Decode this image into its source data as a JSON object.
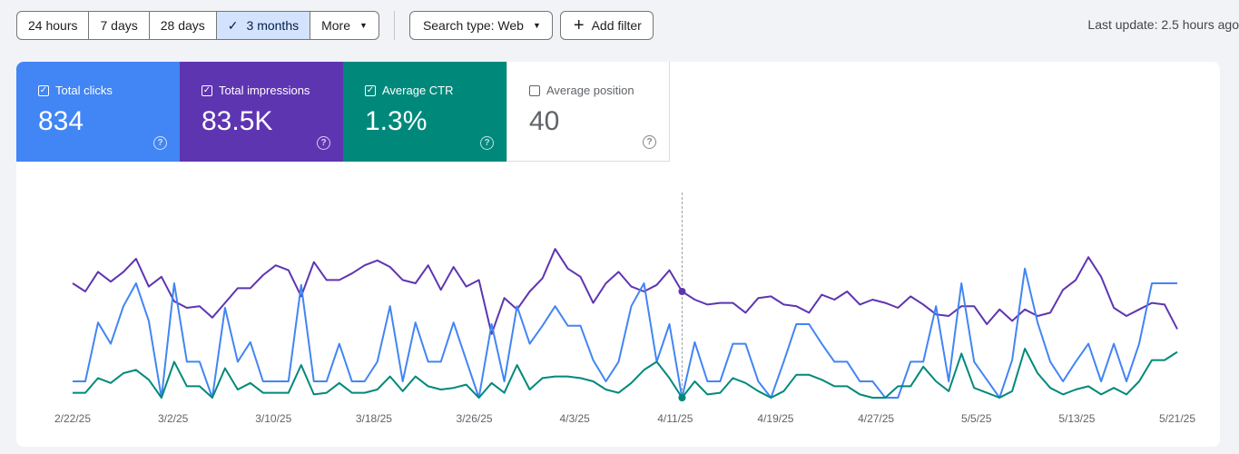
{
  "date_range": {
    "options": [
      {
        "label": "24 hours",
        "selected": false
      },
      {
        "label": "7 days",
        "selected": false
      },
      {
        "label": "28 days",
        "selected": false
      },
      {
        "label": "3 months",
        "selected": true
      },
      {
        "label": "More",
        "selected": false,
        "dropdown": true
      }
    ]
  },
  "filters": {
    "search_type": "Search type: Web",
    "add_filter": "Add filter"
  },
  "last_update": "Last update: 2.5 hours ago",
  "metrics": [
    {
      "label": "Total clicks",
      "value": "834",
      "checked": true,
      "color": "#4285f4"
    },
    {
      "label": "Total impressions",
      "value": "83.5K",
      "checked": true,
      "color": "#5e35b1"
    },
    {
      "label": "Average CTR",
      "value": "1.3%",
      "checked": true,
      "color": "#00897b"
    },
    {
      "label": "Average position",
      "value": "40",
      "checked": false,
      "color": "#ffffff"
    }
  ],
  "chart_data": {
    "type": "line",
    "x_tick_labels": [
      "2/22/25",
      "3/2/25",
      "3/10/25",
      "3/18/25",
      "3/26/25",
      "4/3/25",
      "4/11/25",
      "4/19/25",
      "4/27/25",
      "5/5/25",
      "5/13/25",
      "5/21/25"
    ],
    "hover_index": 48,
    "series": [
      {
        "color": "#5e35b1",
        "values": [
          0.7,
          0.65,
          0.77,
          0.71,
          0.77,
          0.85,
          0.68,
          0.74,
          0.59,
          0.55,
          0.56,
          0.49,
          0.58,
          0.67,
          0.67,
          0.75,
          0.81,
          0.78,
          0.62,
          0.83,
          0.72,
          0.72,
          0.76,
          0.81,
          0.84,
          0.8,
          0.72,
          0.7,
          0.81,
          0.66,
          0.8,
          0.68,
          0.72,
          0.39,
          0.61,
          0.54,
          0.65,
          0.73,
          0.91,
          0.79,
          0.74,
          0.58,
          0.7,
          0.77,
          0.68,
          0.65,
          0.69,
          0.78,
          0.65,
          0.6,
          0.57,
          0.58,
          0.58,
          0.52,
          0.61,
          0.62,
          0.57,
          0.56,
          0.52,
          0.63,
          0.6,
          0.65,
          0.57,
          0.6,
          0.58,
          0.55,
          0.62,
          0.57,
          0.51,
          0.5,
          0.56,
          0.56,
          0.45,
          0.54,
          0.47,
          0.54,
          0.5,
          0.52,
          0.66,
          0.72,
          0.86,
          0.74,
          0.55,
          0.5,
          0.54,
          0.58,
          0.57,
          0.42
        ]
      },
      {
        "color": "#4285f4",
        "values": [
          0.1,
          0.1,
          0.46,
          0.33,
          0.56,
          0.7,
          0.47,
          0.0,
          0.7,
          0.22,
          0.22,
          0.0,
          0.55,
          0.22,
          0.34,
          0.1,
          0.1,
          0.1,
          0.69,
          0.1,
          0.1,
          0.33,
          0.1,
          0.1,
          0.22,
          0.56,
          0.1,
          0.46,
          0.22,
          0.22,
          0.46,
          0.23,
          0.0,
          0.45,
          0.1,
          0.56,
          0.33,
          0.44,
          0.56,
          0.44,
          0.44,
          0.23,
          0.1,
          0.22,
          0.56,
          0.7,
          0.22,
          0.45,
          0.0,
          0.34,
          0.1,
          0.1,
          0.33,
          0.33,
          0.1,
          0.0,
          0.22,
          0.45,
          0.45,
          0.33,
          0.22,
          0.22,
          0.1,
          0.1,
          0.0,
          0.0,
          0.22,
          0.22,
          0.56,
          0.1,
          0.7,
          0.22,
          0.11,
          0.0,
          0.23,
          0.79,
          0.46,
          0.22,
          0.1,
          0.22,
          0.33,
          0.1,
          0.33,
          0.1,
          0.33,
          0.7,
          0.7,
          0.7
        ]
      },
      {
        "color": "#00897b",
        "values": [
          0.03,
          0.03,
          0.12,
          0.09,
          0.15,
          0.17,
          0.11,
          0.0,
          0.22,
          0.07,
          0.07,
          0.0,
          0.18,
          0.05,
          0.09,
          0.03,
          0.03,
          0.03,
          0.2,
          0.02,
          0.03,
          0.09,
          0.03,
          0.03,
          0.05,
          0.13,
          0.04,
          0.13,
          0.07,
          0.05,
          0.06,
          0.08,
          0.0,
          0.09,
          0.03,
          0.2,
          0.05,
          0.12,
          0.13,
          0.13,
          0.12,
          0.1,
          0.05,
          0.03,
          0.09,
          0.17,
          0.22,
          0.12,
          0.0,
          0.1,
          0.02,
          0.03,
          0.12,
          0.09,
          0.04,
          0.0,
          0.04,
          0.14,
          0.14,
          0.11,
          0.07,
          0.07,
          0.02,
          0.0,
          0.0,
          0.07,
          0.07,
          0.19,
          0.1,
          0.04,
          0.27,
          0.06,
          0.03,
          0.0,
          0.04,
          0.3,
          0.15,
          0.06,
          0.02,
          0.05,
          0.07,
          0.02,
          0.06,
          0.02,
          0.1,
          0.23,
          0.23,
          0.28
        ]
      }
    ]
  }
}
